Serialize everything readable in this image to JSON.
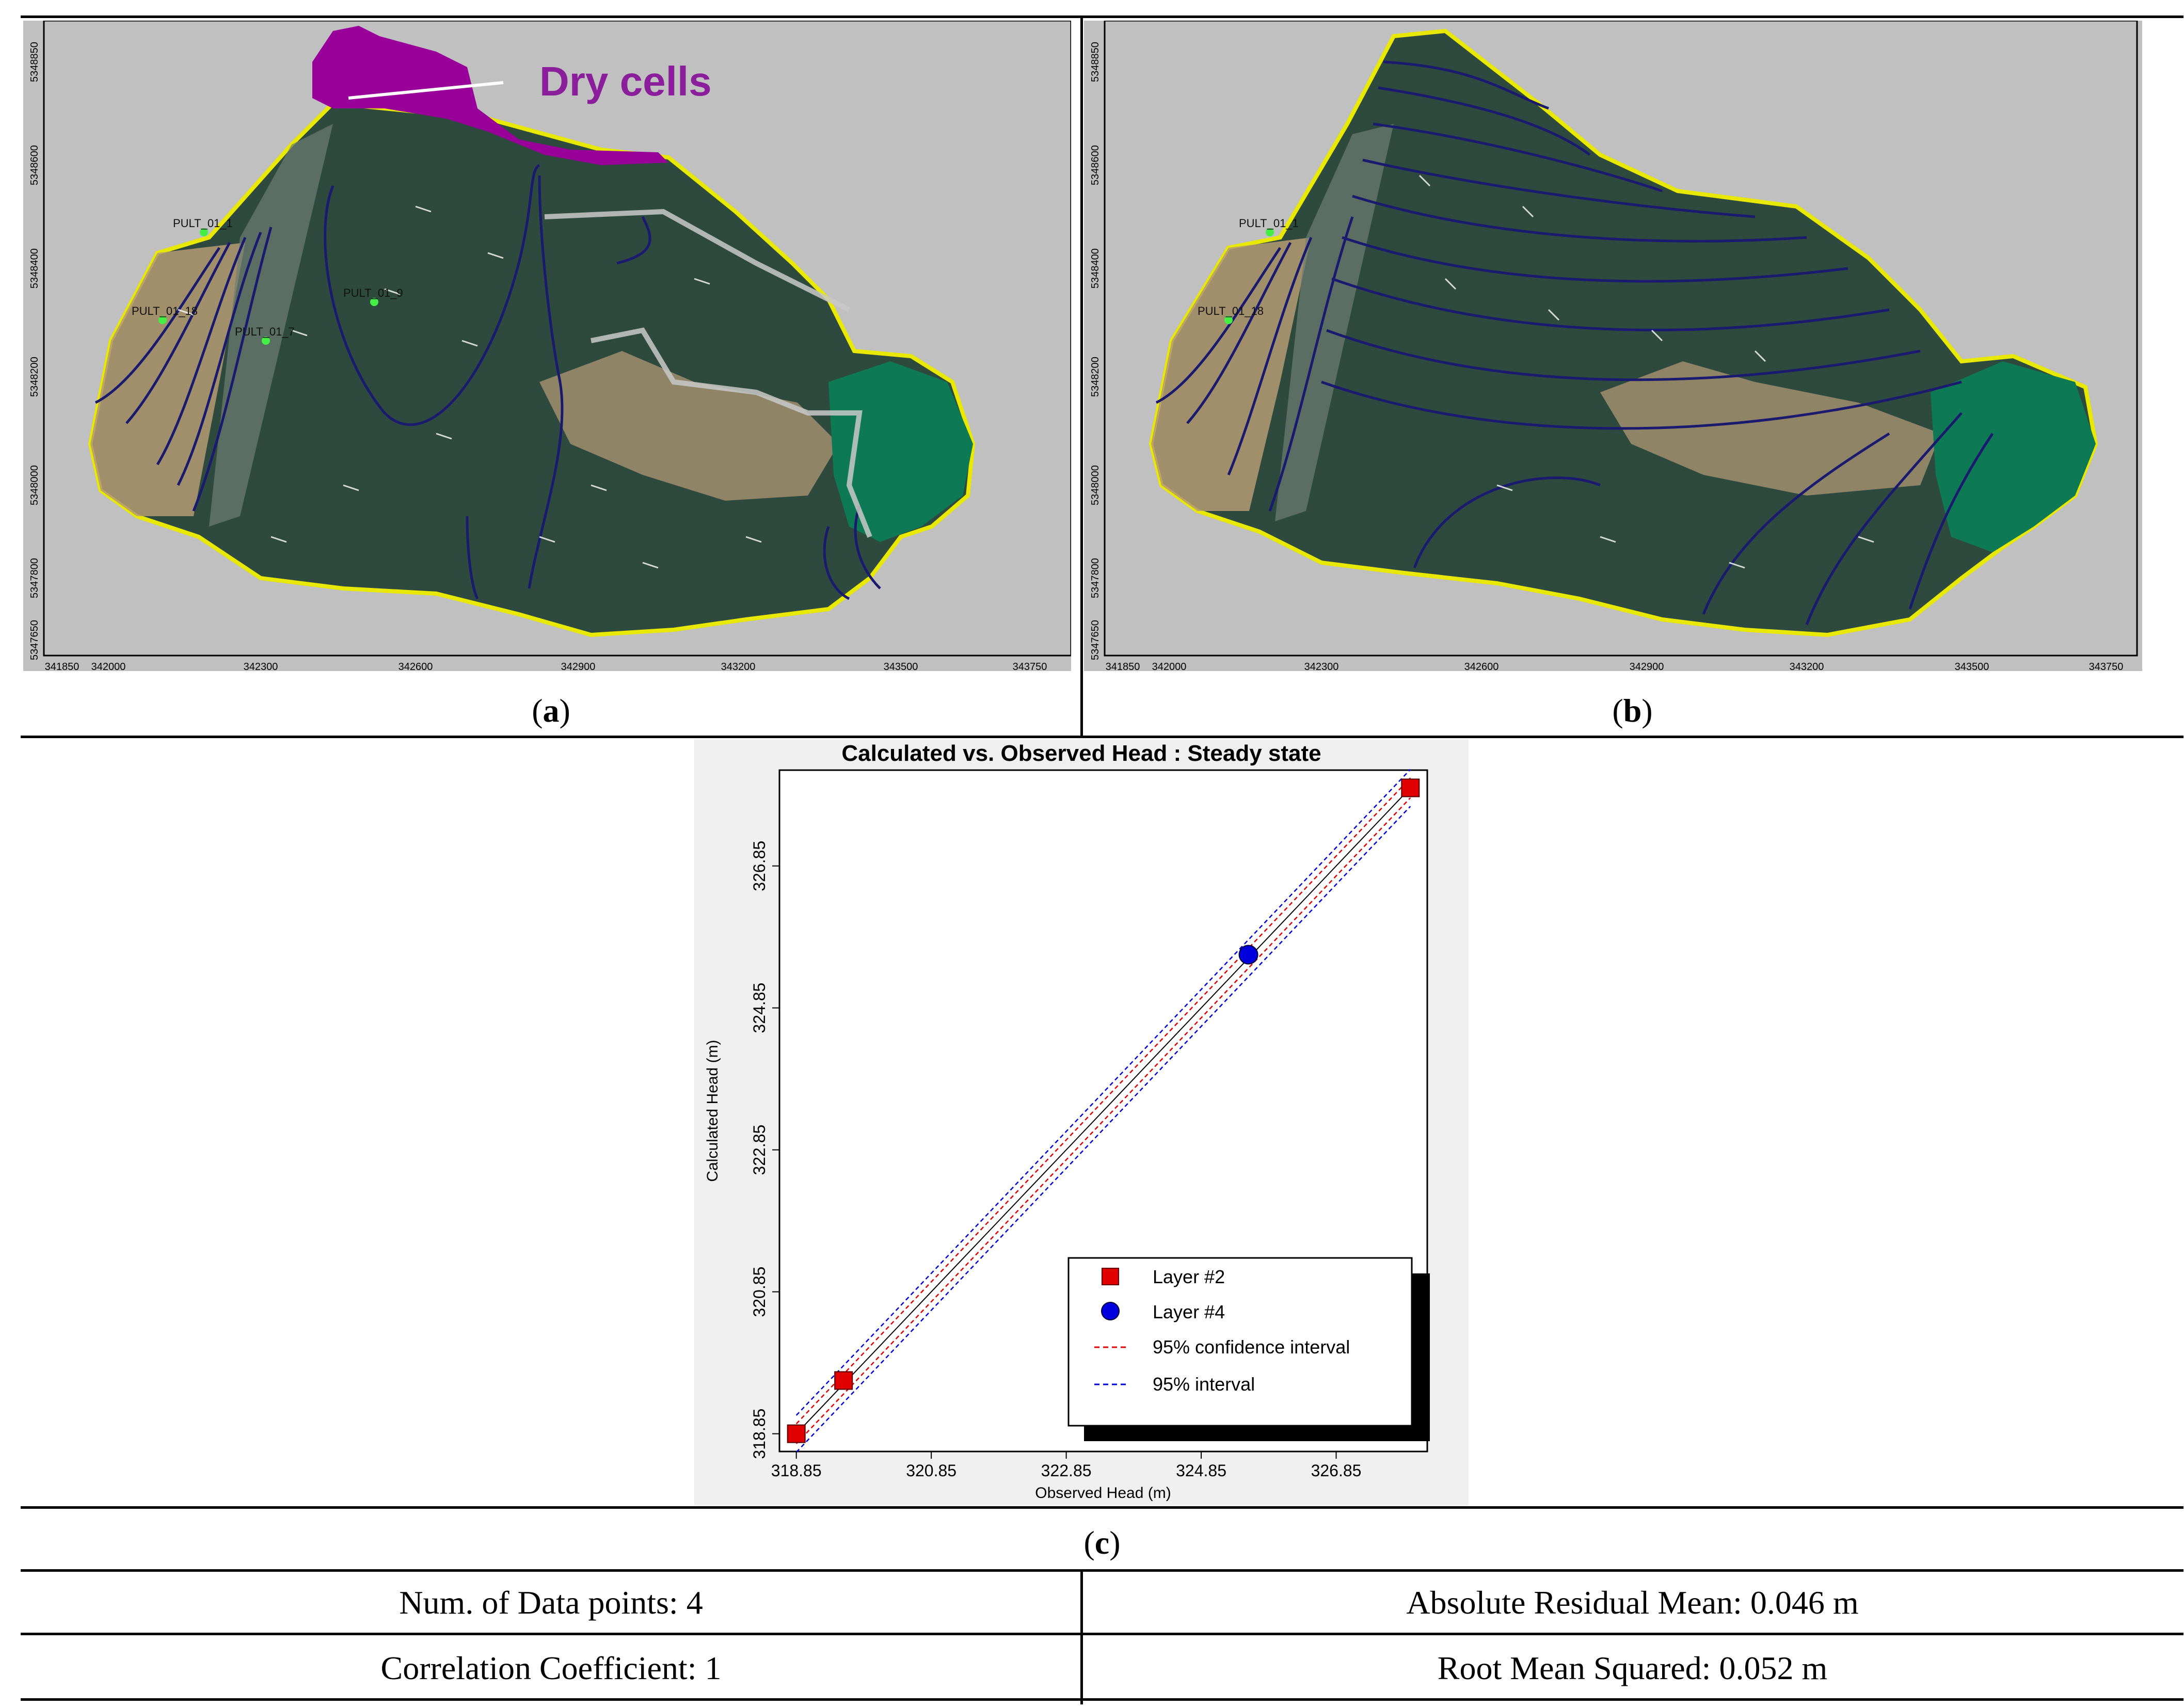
{
  "figure": {
    "panel_a": {
      "label": "a",
      "annotation": "Dry cells",
      "x_ticks": [
        "341850",
        "342000",
        "342300",
        "342600",
        "342900",
        "343200",
        "343500",
        "343750"
      ],
      "y_ticks": [
        "5348850",
        "5348600",
        "5348400",
        "5348200",
        "5348000",
        "5347800",
        "5347650"
      ],
      "well_labels": [
        "PULT_01_1",
        "PULT_01_18",
        "PULT_01_7",
        "PULT_01_9"
      ]
    },
    "panel_b": {
      "label": "b",
      "x_ticks": [
        "341850",
        "342000",
        "342300",
        "342600",
        "342900",
        "343200",
        "343500",
        "343750"
      ],
      "y_ticks": [
        "5348850",
        "5348600",
        "5348400",
        "5348200",
        "5348000",
        "5347800",
        "5347650"
      ],
      "well_labels": [
        "PULT_01_1",
        "PULT_01_18"
      ]
    },
    "panel_c": {
      "label": "c"
    },
    "stats": {
      "data_points": "Num. of Data points: 4",
      "abs_residual_mean": "Absolute Residual Mean: 0.046 m",
      "correlation": "Correlation Coefficient: 1",
      "rms": "Root Mean Squared: 0.052 m"
    },
    "colors": {
      "map_background": "#c0c0c0",
      "dry_cells": "#990099",
      "terrain": "#2e4a3e",
      "contour": "#1a1a6e",
      "boundary": "#e8e800",
      "lake": "#0e7a55"
    }
  },
  "chart_data": {
    "type": "scatter",
    "title": "Calculated vs. Observed Head : Steady state",
    "xlabel": "Observed Head (m)",
    "ylabel": "Calculated Head (m)",
    "xlim": [
      318.6,
      328.2
    ],
    "ylim": [
      318.6,
      328.2
    ],
    "x_ticks": [
      "318.85",
      "320.85",
      "322.85",
      "324.85",
      "326.85"
    ],
    "y_ticks": [
      "318.85",
      "320.85",
      "322.85",
      "324.85",
      "326.85"
    ],
    "series": [
      {
        "name": "Layer #2",
        "marker": "square",
        "color": "#e00000",
        "points": [
          [
            318.85,
            318.85
          ],
          [
            319.55,
            319.6
          ],
          [
            327.95,
            327.95
          ]
        ]
      },
      {
        "name": "Layer #4",
        "marker": "circle",
        "color": "#0000dd",
        "points": [
          [
            325.55,
            325.6
          ]
        ]
      }
    ],
    "legend": [
      {
        "label": "Layer #2"
      },
      {
        "label": "Layer #4"
      },
      {
        "label": "95% confidence interval",
        "color": "#e00000",
        "style": "dashed"
      },
      {
        "label": "95% interval",
        "color": "#0000dd",
        "style": "dashed"
      }
    ],
    "legend_position": "bottom-right",
    "grid": false
  }
}
